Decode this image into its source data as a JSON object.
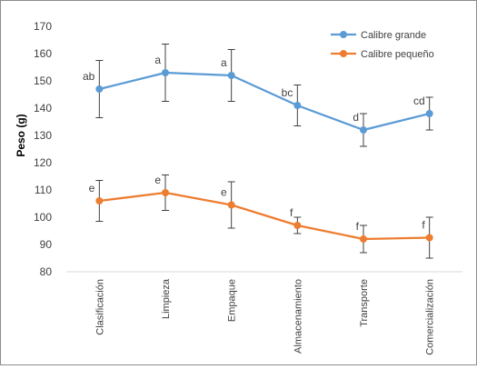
{
  "chart_data": {
    "type": "line",
    "title": "",
    "ylabel": "Peso (g)",
    "xlabel": "",
    "ylim": [
      80,
      170
    ],
    "yticks": [
      80,
      90,
      100,
      110,
      120,
      130,
      140,
      150,
      160,
      170
    ],
    "grid": false,
    "legend_position": "top-right",
    "categories": [
      "Clasificación",
      "Limpieza",
      "Empaque",
      "Almacenamiento",
      "Transporte",
      "Comercialización"
    ],
    "series": [
      {
        "name": "Calibre grande",
        "color": "#5b9bd5",
        "values": [
          147,
          153,
          152,
          141,
          132,
          138
        ],
        "error": [
          10.5,
          10.5,
          9.5,
          7.5,
          6,
          6
        ],
        "labels": [
          "ab",
          "a",
          "a",
          "bc",
          "d",
          "cd"
        ]
      },
      {
        "name": "Calibre pequeño",
        "color": "#ed7d31",
        "values": [
          106,
          109,
          104.5,
          97,
          92,
          92.5
        ],
        "error": [
          7.5,
          6.5,
          8.5,
          3,
          5,
          7.5
        ],
        "labels": [
          "e",
          "e",
          "e",
          "f",
          "f",
          "f"
        ]
      }
    ]
  }
}
